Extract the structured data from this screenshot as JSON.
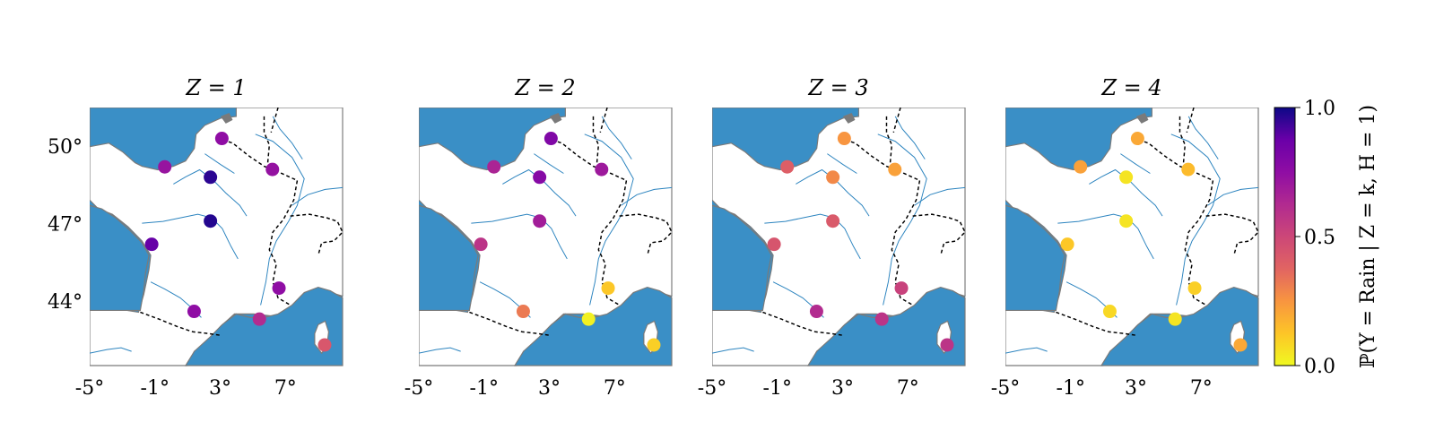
{
  "chart_data": {
    "type": "scatter",
    "map_region": "France",
    "panels": [
      {
        "title": "Z = 1",
        "points": [
          {
            "lon": -0.4,
            "lat": 49.2,
            "value": 0.72
          },
          {
            "lon": 3.1,
            "lat": 50.3,
            "value": 0.75
          },
          {
            "lon": 6.2,
            "lat": 49.1,
            "value": 0.73
          },
          {
            "lon": 2.4,
            "lat": 48.8,
            "value": 0.96
          },
          {
            "lon": 2.4,
            "lat": 47.1,
            "value": 0.97
          },
          {
            "lon": -1.2,
            "lat": 46.2,
            "value": 0.88
          },
          {
            "lon": 1.4,
            "lat": 43.6,
            "value": 0.75
          },
          {
            "lon": 6.6,
            "lat": 44.5,
            "value": 0.75
          },
          {
            "lon": 5.4,
            "lat": 43.3,
            "value": 0.62
          },
          {
            "lon": 9.4,
            "lat": 42.3,
            "value": 0.43
          }
        ]
      },
      {
        "title": "Z = 2",
        "points": [
          {
            "lon": -0.4,
            "lat": 49.2,
            "value": 0.65
          },
          {
            "lon": 3.1,
            "lat": 50.3,
            "value": 0.8
          },
          {
            "lon": 6.2,
            "lat": 49.1,
            "value": 0.7
          },
          {
            "lon": 2.4,
            "lat": 48.8,
            "value": 0.78
          },
          {
            "lon": 2.4,
            "lat": 47.1,
            "value": 0.68
          },
          {
            "lon": -1.2,
            "lat": 46.2,
            "value": 0.58
          },
          {
            "lon": 1.4,
            "lat": 43.6,
            "value": 0.32
          },
          {
            "lon": 6.6,
            "lat": 44.5,
            "value": 0.12
          },
          {
            "lon": 5.4,
            "lat": 43.3,
            "value": 0.02
          },
          {
            "lon": 9.4,
            "lat": 42.3,
            "value": 0.1
          }
        ]
      },
      {
        "title": "Z = 3",
        "points": [
          {
            "lon": -0.4,
            "lat": 49.2,
            "value": 0.4
          },
          {
            "lon": 3.1,
            "lat": 50.3,
            "value": 0.25
          },
          {
            "lon": 6.2,
            "lat": 49.1,
            "value": 0.22
          },
          {
            "lon": 2.4,
            "lat": 48.8,
            "value": 0.28
          },
          {
            "lon": 2.4,
            "lat": 47.1,
            "value": 0.42
          },
          {
            "lon": -1.2,
            "lat": 46.2,
            "value": 0.44
          },
          {
            "lon": 1.4,
            "lat": 43.6,
            "value": 0.62
          },
          {
            "lon": 6.6,
            "lat": 44.5,
            "value": 0.52
          },
          {
            "lon": 5.4,
            "lat": 43.3,
            "value": 0.58
          },
          {
            "lon": 9.4,
            "lat": 42.3,
            "value": 0.58
          }
        ]
      },
      {
        "title": "Z = 4",
        "points": [
          {
            "lon": -0.4,
            "lat": 49.2,
            "value": 0.22
          },
          {
            "lon": 3.1,
            "lat": 50.3,
            "value": 0.2
          },
          {
            "lon": 6.2,
            "lat": 49.1,
            "value": 0.15
          },
          {
            "lon": 2.4,
            "lat": 48.8,
            "value": 0.05
          },
          {
            "lon": 2.4,
            "lat": 47.1,
            "value": 0.05
          },
          {
            "lon": -1.2,
            "lat": 46.2,
            "value": 0.12
          },
          {
            "lon": 1.4,
            "lat": 43.6,
            "value": 0.08
          },
          {
            "lon": 6.6,
            "lat": 44.5,
            "value": 0.1
          },
          {
            "lon": 5.4,
            "lat": 43.3,
            "value": 0.05
          },
          {
            "lon": 9.4,
            "lat": 42.3,
            "value": 0.2
          }
        ]
      }
    ],
    "x_ticks": [
      "-5°",
      "-1°",
      "3°",
      "7°"
    ],
    "x_tick_values": [
      -5,
      -1,
      3,
      7
    ],
    "y_ticks": [
      "50°",
      "47°",
      "44°"
    ],
    "y_tick_values": [
      50,
      47,
      44
    ],
    "xlim": [
      -5,
      10.5
    ],
    "ylim": [
      41.5,
      51.5
    ],
    "colorbar": {
      "label": "ℙ(Y = Rain | Z = k, H = 1)",
      "range": [
        0.0,
        1.0
      ],
      "ticks": [
        "1.0",
        "0.5",
        "0.0"
      ],
      "tick_values": [
        1.0,
        0.5,
        0.0
      ],
      "colormap": "plasma_r"
    },
    "colors": {
      "sea": "#3a8fc6",
      "land": "#ffffff",
      "river": "#2c84bf",
      "border": "#000000"
    }
  }
}
